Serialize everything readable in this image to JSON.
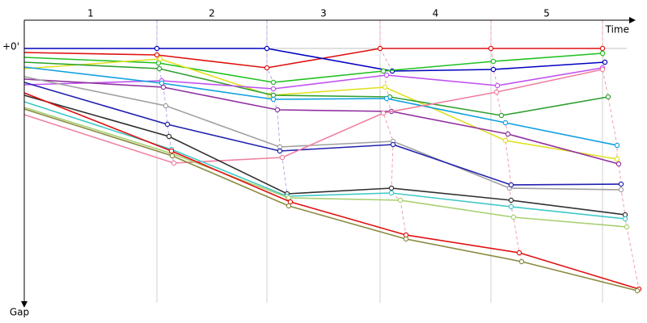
{
  "chart_data": {
    "type": "line",
    "x_label": "Time",
    "y_label": "Gap",
    "categories": [
      "1",
      "2",
      "3",
      "4",
      "5"
    ],
    "lap_ends": [
      164,
      300,
      440,
      577,
      715
    ],
    "lap_line_colors": [
      "#b0a8f0",
      "#b0a8f0",
      "#f0a0a8",
      "#f0a0a8",
      "#f0a0a8"
    ],
    "xlim": [
      0,
      745
    ],
    "ylim": [
      -35,
      315
    ],
    "yticks": [
      {
        "value": 0,
        "label": "+0'"
      }
    ],
    "grid": true,
    "series": [
      {
        "color": "#e01010",
        "x": [
          0,
          164,
          300,
          440,
          577,
          715
        ],
        "values": [
          5,
          8,
          24,
          0,
          0,
          0
        ]
      },
      {
        "color": "#0000c0",
        "x": [
          0,
          164,
          300,
          455,
          580,
          718
        ],
        "values": [
          0,
          0,
          0,
          28,
          26,
          17
        ]
      },
      {
        "color": "#20c020",
        "x": [
          0,
          166,
          308,
          444,
          580,
          715
        ],
        "values": [
          11,
          18,
          42,
          28,
          16,
          6
        ]
      },
      {
        "color": "#e0e020",
        "x": [
          0,
          168,
          304,
          446,
          595,
          733
        ],
        "values": [
          25,
          13,
          58,
          48,
          114,
          137
        ]
      },
      {
        "color": "#30a030",
        "x": [
          0,
          167,
          308,
          452,
          590,
          722
        ],
        "values": [
          17,
          25,
          58,
          60,
          83,
          60
        ]
      },
      {
        "color": "#c050f0",
        "x": [
          0,
          170,
          308,
          448,
          585,
          715
        ],
        "values": [
          45,
          40,
          50,
          33,
          46,
          24
        ]
      },
      {
        "color": "#10a0e0",
        "x": [
          0,
          170,
          308,
          448,
          595,
          733
        ],
        "values": [
          23,
          43,
          63,
          62,
          92,
          120
        ]
      },
      {
        "color": "#9030a0",
        "x": [
          0,
          172,
          313,
          454,
          598,
          735
        ],
        "values": [
          38,
          48,
          76,
          78,
          106,
          143
        ]
      },
      {
        "color": "#a0a0a0",
        "x": [
          0,
          175,
          316,
          456,
          600,
          738
        ],
        "values": [
          35,
          71,
          122,
          115,
          173,
          175
        ]
      },
      {
        "color": "#2020b0",
        "x": [
          0,
          177,
          316,
          456,
          602,
          738
        ],
        "values": [
          42,
          94,
          127,
          119,
          169,
          168
        ]
      },
      {
        "color": "#f080a0",
        "x": [
          0,
          185,
          319,
          444,
          584,
          715
        ],
        "values": [
          82,
          142,
          135,
          80,
          54,
          26
        ]
      },
      {
        "color": "#303030",
        "x": [
          0,
          179,
          325,
          454,
          602,
          743
        ],
        "values": [
          58,
          109,
          180,
          173,
          188,
          206
        ]
      },
      {
        "color": "#40c8c8",
        "x": [
          0,
          182,
          325,
          454,
          602,
          743
        ],
        "values": [
          66,
          125,
          183,
          179,
          196,
          211
        ]
      },
      {
        "color": "#a8d070",
        "x": [
          0,
          182,
          327,
          465,
          605,
          745
        ],
        "values": [
          73,
          130,
          185,
          188,
          209,
          221
        ]
      },
      {
        "color": "#e01010",
        "x": [
          0,
          182,
          329,
          472,
          612,
          760
        ],
        "values": [
          55,
          127,
          190,
          231,
          253,
          298
        ]
      },
      {
        "color": "#8a8a40",
        "x": [
          0,
          183,
          327,
          472,
          615,
          758
        ],
        "values": [
          75,
          133,
          195,
          236,
          264,
          300
        ]
      }
    ]
  }
}
